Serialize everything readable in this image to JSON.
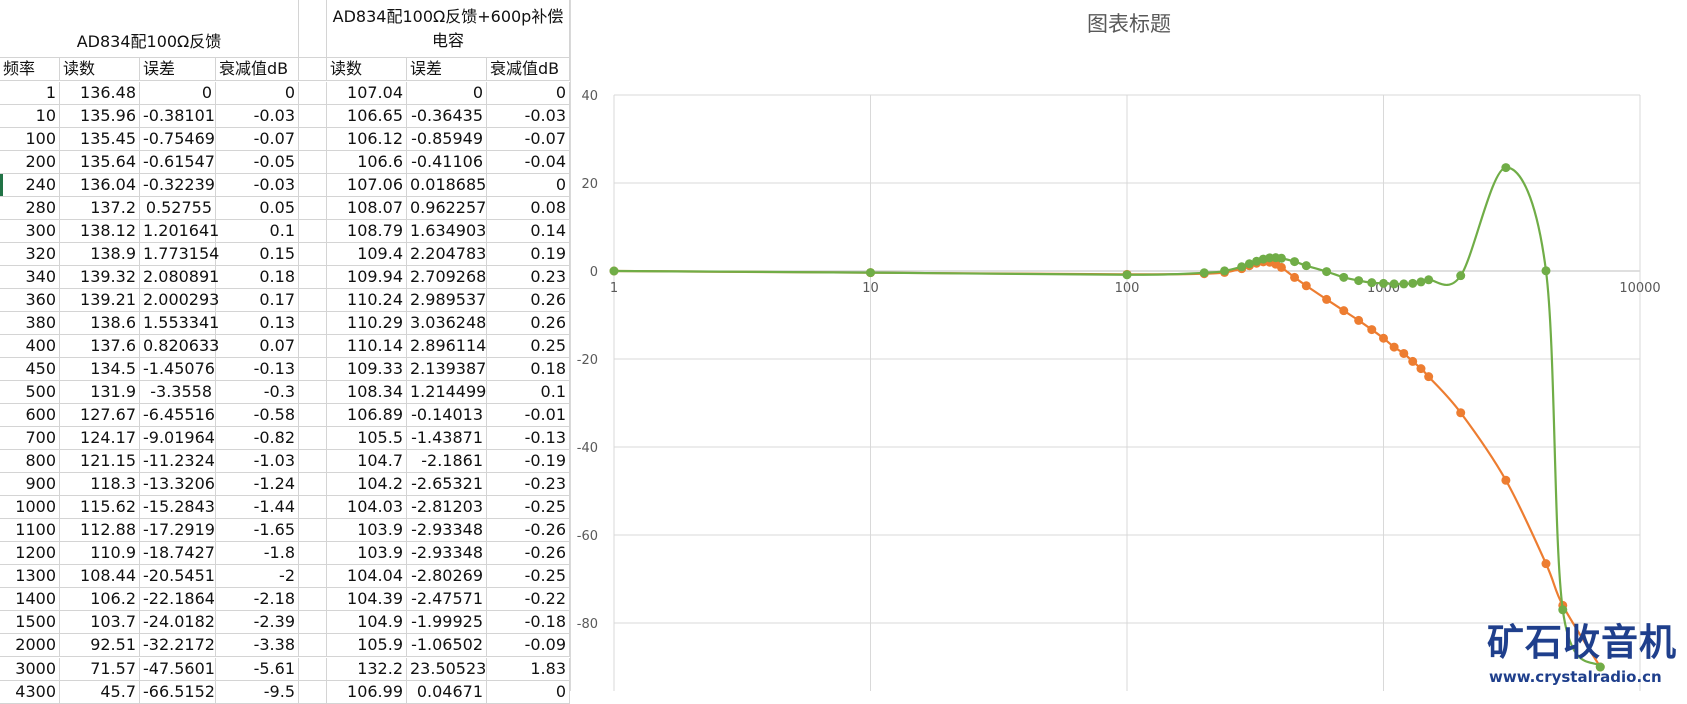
{
  "table": {
    "group1_title": "AD834配100Ω反馈",
    "group2_title": "AD834配100Ω反馈+600p补偿电容",
    "headers": [
      "频率",
      "读数",
      "误差",
      "衰减值dB",
      "读数",
      "误差",
      "衰减值dB"
    ],
    "rows": [
      [
        "1",
        "136.48",
        "0",
        "0",
        "107.04",
        "0",
        "0"
      ],
      [
        "10",
        "135.96",
        "-0.38101",
        "-0.03",
        "106.65",
        "-0.36435",
        "-0.03"
      ],
      [
        "100",
        "135.45",
        "-0.75469",
        "-0.07",
        "106.12",
        "-0.85949",
        "-0.07"
      ],
      [
        "200",
        "135.64",
        "-0.61547",
        "-0.05",
        "106.6",
        "-0.41106",
        "-0.04"
      ],
      [
        "240",
        "136.04",
        "-0.32239",
        "-0.03",
        "107.06",
        "0.018685",
        "0"
      ],
      [
        "280",
        "137.2",
        "0.52755",
        "0.05",
        "108.07",
        "0.962257",
        "0.08"
      ],
      [
        "300",
        "138.12",
        "1.201641",
        "0.1",
        "108.79",
        "1.634903",
        "0.14"
      ],
      [
        "320",
        "138.9",
        "1.773154",
        "0.15",
        "109.4",
        "2.204783",
        "0.19"
      ],
      [
        "340",
        "139.32",
        "2.080891",
        "0.18",
        "109.94",
        "2.709268",
        "0.23"
      ],
      [
        "360",
        "139.21",
        "2.000293",
        "0.17",
        "110.24",
        "2.989537",
        "0.26"
      ],
      [
        "380",
        "138.6",
        "1.553341",
        "0.13",
        "110.29",
        "3.036248",
        "0.26"
      ],
      [
        "400",
        "137.6",
        "0.820633",
        "0.07",
        "110.14",
        "2.896114",
        "0.25"
      ],
      [
        "450",
        "134.5",
        "-1.45076",
        "-0.13",
        "109.33",
        "2.139387",
        "0.18"
      ],
      [
        "500",
        "131.9",
        "-3.3558",
        "-0.3",
        "108.34",
        "1.214499",
        "0.1"
      ],
      [
        "600",
        "127.67",
        "-6.45516",
        "-0.58",
        "106.89",
        "-0.14013",
        "-0.01"
      ],
      [
        "700",
        "124.17",
        "-9.01964",
        "-0.82",
        "105.5",
        "-1.43871",
        "-0.13"
      ],
      [
        "800",
        "121.15",
        "-11.2324",
        "-1.03",
        "104.7",
        "-2.1861",
        "-0.19"
      ],
      [
        "900",
        "118.3",
        "-13.3206",
        "-1.24",
        "104.2",
        "-2.65321",
        "-0.23"
      ],
      [
        "1000",
        "115.62",
        "-15.2843",
        "-1.44",
        "104.03",
        "-2.81203",
        "-0.25"
      ],
      [
        "1100",
        "112.88",
        "-17.2919",
        "-1.65",
        "103.9",
        "-2.93348",
        "-0.26"
      ],
      [
        "1200",
        "110.9",
        "-18.7427",
        "-1.8",
        "103.9",
        "-2.93348",
        "-0.26"
      ],
      [
        "1300",
        "108.44",
        "-20.5451",
        "-2",
        "104.04",
        "-2.80269",
        "-0.25"
      ],
      [
        "1400",
        "106.2",
        "-22.1864",
        "-2.18",
        "104.39",
        "-2.47571",
        "-0.22"
      ],
      [
        "1500",
        "103.7",
        "-24.0182",
        "-2.39",
        "104.9",
        "-1.99925",
        "-0.18"
      ],
      [
        "2000",
        "92.51",
        "-32.2172",
        "-3.38",
        "105.9",
        "-1.06502",
        "-0.09"
      ],
      [
        "3000",
        "71.57",
        "-47.5601",
        "-5.61",
        "132.2",
        "23.50523",
        "1.83"
      ],
      [
        "4300",
        "45.7",
        "-66.5152",
        "-9.5",
        "106.99",
        "0.04671",
        "0"
      ]
    ]
  },
  "chart_data": {
    "type": "scatter",
    "title": "图表标题",
    "x_scale": "log",
    "xlim": [
      1,
      10000
    ],
    "ylim": [
      -100,
      40
    ],
    "x_ticks": [
      "1",
      "10",
      "100",
      "1000",
      "10000"
    ],
    "y_ticks": [
      "40",
      "20",
      "0",
      "-20",
      "-40",
      "-60",
      "-80"
    ],
    "grid": true,
    "smooth_lines": true,
    "markers": true,
    "series": [
      {
        "color": "#ED7D31",
        "x": [
          1,
          10,
          100,
          200,
          240,
          280,
          300,
          320,
          340,
          360,
          380,
          400,
          450,
          500,
          600,
          700,
          800,
          900,
          1000,
          1100,
          1200,
          1300,
          1400,
          1500,
          2000,
          3000,
          4300,
          5000,
          7000
        ],
        "y": [
          0,
          -0.38101,
          -0.75469,
          -0.61547,
          -0.32239,
          0.52755,
          1.201641,
          1.773154,
          2.080891,
          2.000293,
          1.553341,
          0.820633,
          -1.45076,
          -3.3558,
          -6.45516,
          -9.01964,
          -11.2324,
          -13.3206,
          -15.2843,
          -17.2919,
          -18.7427,
          -20.5451,
          -22.1864,
          -24.0182,
          -32.2172,
          -47.5601,
          -66.5152,
          -76,
          -90
        ]
      },
      {
        "color": "#70AD47",
        "x": [
          1,
          10,
          100,
          200,
          240,
          280,
          300,
          320,
          340,
          360,
          380,
          400,
          450,
          500,
          600,
          700,
          800,
          900,
          1000,
          1100,
          1200,
          1300,
          1400,
          1500,
          2000,
          3000,
          4300,
          5000,
          7000
        ],
        "y": [
          0,
          -0.36435,
          -0.85949,
          -0.41106,
          0.018685,
          0.962257,
          1.634903,
          2.204783,
          2.709268,
          2.989537,
          3.036248,
          2.896114,
          2.139387,
          1.214499,
          -0.14013,
          -1.43871,
          -2.1861,
          -2.65321,
          -2.81203,
          -2.93348,
          -2.93348,
          -2.80269,
          -2.47571,
          -1.99925,
          -1.06502,
          23.50523,
          0.04671,
          -77,
          -90
        ]
      }
    ]
  },
  "watermark": {
    "name": "矿石收音机",
    "url": "www.crystalradio.cn"
  }
}
